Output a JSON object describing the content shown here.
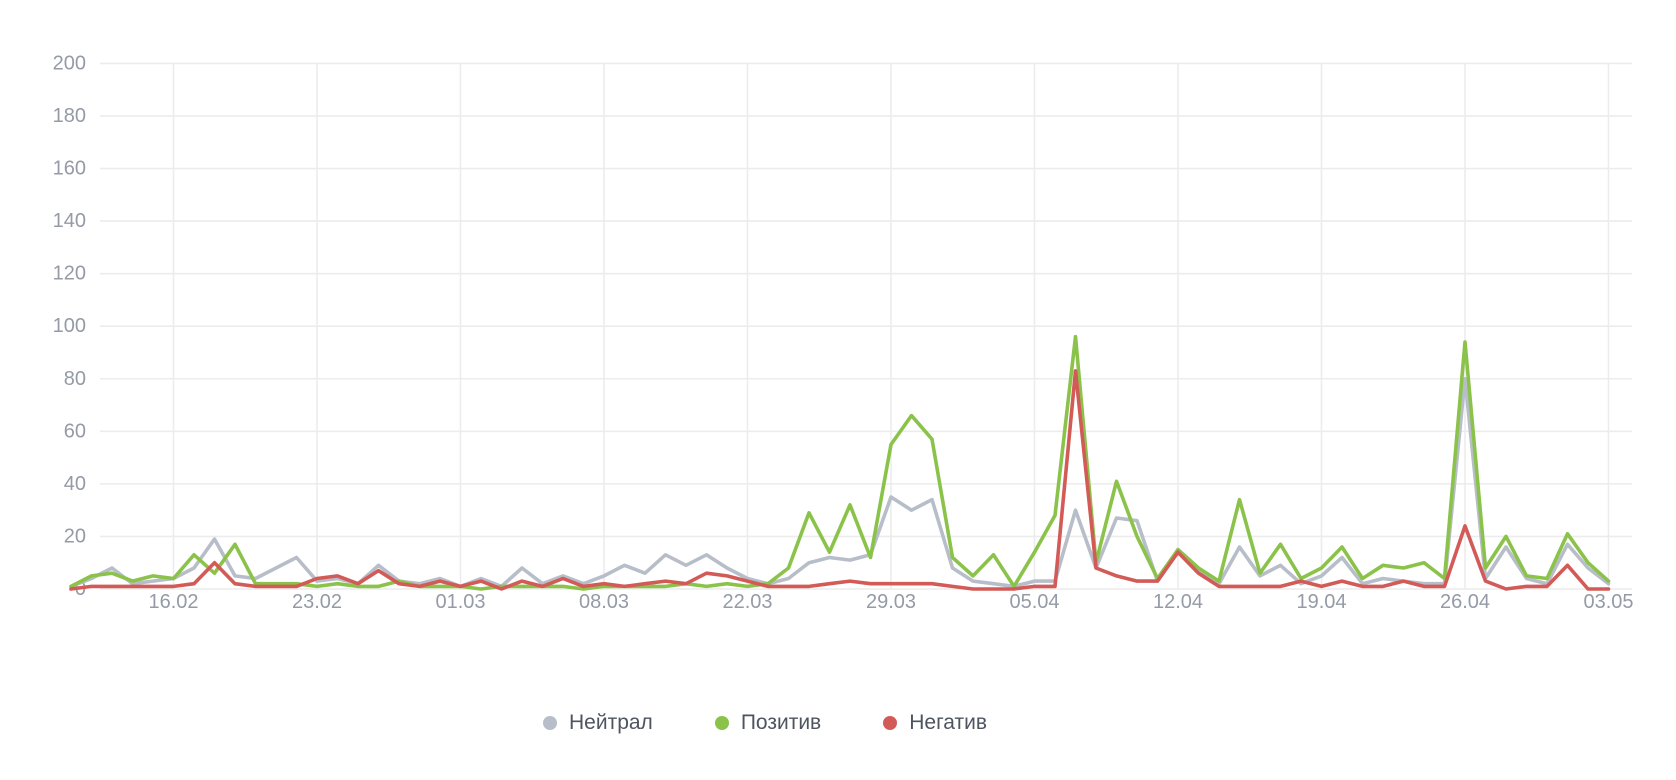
{
  "chart_data": {
    "type": "line",
    "title": "",
    "xlabel": "",
    "ylabel": "",
    "ylim": [
      0,
      200
    ],
    "y_tick_labels": [
      "0",
      "20",
      "40",
      "60",
      "80",
      "100",
      "120",
      "140",
      "160",
      "180",
      "200"
    ],
    "x_tick_labels": [
      "16.02",
      "23.02",
      "01.03",
      "08.03",
      "22.03",
      "29.03",
      "05.04",
      "12.04",
      "19.04",
      "26.04",
      "03.05"
    ],
    "x_tick_indices": [
      5,
      12,
      19,
      26,
      33,
      40,
      47,
      54,
      61,
      68,
      75
    ],
    "n_points": 76,
    "grid": true,
    "legend_position": "bottom",
    "colors": {
      "grid": "#ececec",
      "axis_text": "#949ba6",
      "background": "#ffffff"
    },
    "series": [
      {
        "name": "Нейтрал",
        "color": "#b7bec9",
        "values": [
          1,
          4,
          8,
          2,
          3,
          4,
          8,
          19,
          5,
          4,
          8,
          12,
          3,
          4,
          2,
          9,
          3,
          2,
          4,
          1,
          4,
          1,
          8,
          2,
          5,
          2,
          5,
          9,
          6,
          13,
          9,
          13,
          8,
          4,
          2,
          4,
          10,
          12,
          11,
          13,
          35,
          30,
          34,
          8,
          3,
          2,
          1,
          3,
          3,
          30,
          8,
          27,
          26,
          3,
          15,
          7,
          2,
          16,
          5,
          9,
          2,
          5,
          12,
          2,
          4,
          3,
          2,
          2,
          80,
          4,
          16,
          4,
          2,
          17,
          8,
          2
        ]
      },
      {
        "name": "Позитив",
        "color": "#8bc34a",
        "values": [
          1,
          5,
          6,
          3,
          5,
          4,
          13,
          6,
          17,
          2,
          2,
          2,
          1,
          2,
          1,
          1,
          3,
          1,
          1,
          1,
          0,
          1,
          1,
          1,
          1,
          0,
          1,
          1,
          1,
          1,
          2,
          1,
          2,
          1,
          2,
          8,
          29,
          14,
          32,
          12,
          55,
          66,
          57,
          12,
          5,
          13,
          1,
          14,
          28,
          96,
          10,
          41,
          20,
          4,
          15,
          8,
          3,
          34,
          6,
          17,
          4,
          8,
          16,
          4,
          9,
          8,
          10,
          4,
          94,
          8,
          20,
          5,
          4,
          21,
          10,
          3
        ]
      },
      {
        "name": "Негатив",
        "color": "#d35b57",
        "values": [
          0,
          1,
          1,
          1,
          1,
          1,
          2,
          10,
          2,
          1,
          1,
          1,
          4,
          5,
          2,
          7,
          2,
          1,
          3,
          1,
          3,
          0,
          3,
          1,
          4,
          1,
          2,
          1,
          2,
          3,
          2,
          6,
          5,
          3,
          1,
          1,
          1,
          2,
          3,
          2,
          2,
          2,
          2,
          1,
          0,
          0,
          0,
          1,
          1,
          83,
          8,
          5,
          3,
          3,
          14,
          6,
          1,
          1,
          1,
          1,
          3,
          1,
          3,
          1,
          1,
          3,
          1,
          1,
          24,
          3,
          0,
          1,
          1,
          9,
          0,
          0
        ]
      }
    ]
  }
}
